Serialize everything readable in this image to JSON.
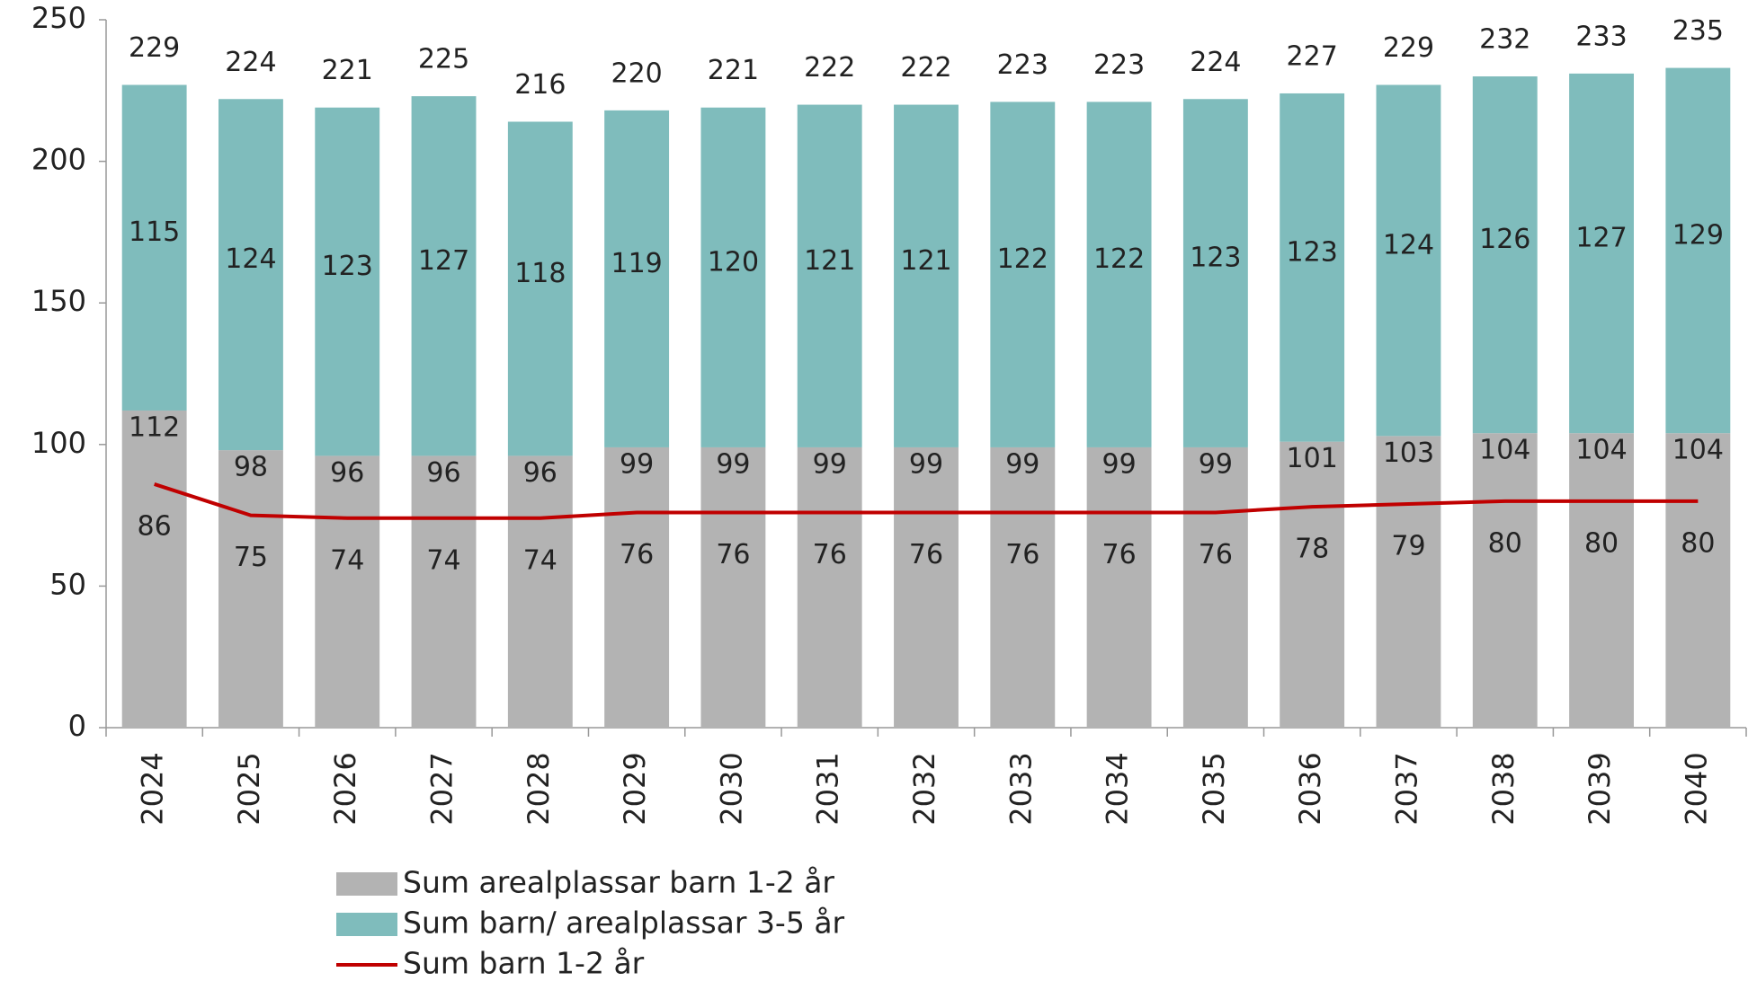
{
  "chart_data": {
    "type": "bar",
    "categories": [
      "2024",
      "2025",
      "2026",
      "2027",
      "2028",
      "2029",
      "2030",
      "2031",
      "2032",
      "2033",
      "2034",
      "2035",
      "2036",
      "2037",
      "2038",
      "2039",
      "2040"
    ],
    "series": [
      {
        "name": "Sum arealplassar barn 1-2 år",
        "color": "#b3b3b3",
        "type": "bar",
        "values": [
          112,
          98,
          96,
          96,
          96,
          99,
          99,
          99,
          99,
          99,
          99,
          99,
          101,
          103,
          104,
          104,
          104
        ]
      },
      {
        "name": "Sum barn/ arealplassar  3-5 år",
        "color": "#7fbcbc",
        "type": "bar",
        "values": [
          115,
          124,
          123,
          127,
          118,
          119,
          120,
          121,
          121,
          122,
          122,
          123,
          123,
          124,
          126,
          127,
          129
        ]
      },
      {
        "name": "Sum barn 1-2 år",
        "color": "#c00000",
        "type": "line",
        "values": [
          86,
          75,
          74,
          74,
          74,
          76,
          76,
          76,
          76,
          76,
          76,
          76,
          78,
          79,
          80,
          80,
          80
        ]
      }
    ],
    "totals": [
      229,
      224,
      221,
      225,
      216,
      220,
      221,
      222,
      222,
      223,
      223,
      224,
      227,
      229,
      232,
      233,
      235
    ],
    "stacked": true,
    "ylim": [
      0,
      250
    ],
    "yticks": [
      0,
      50,
      100,
      150,
      200,
      250
    ],
    "grid": false,
    "legend": "bottom"
  }
}
